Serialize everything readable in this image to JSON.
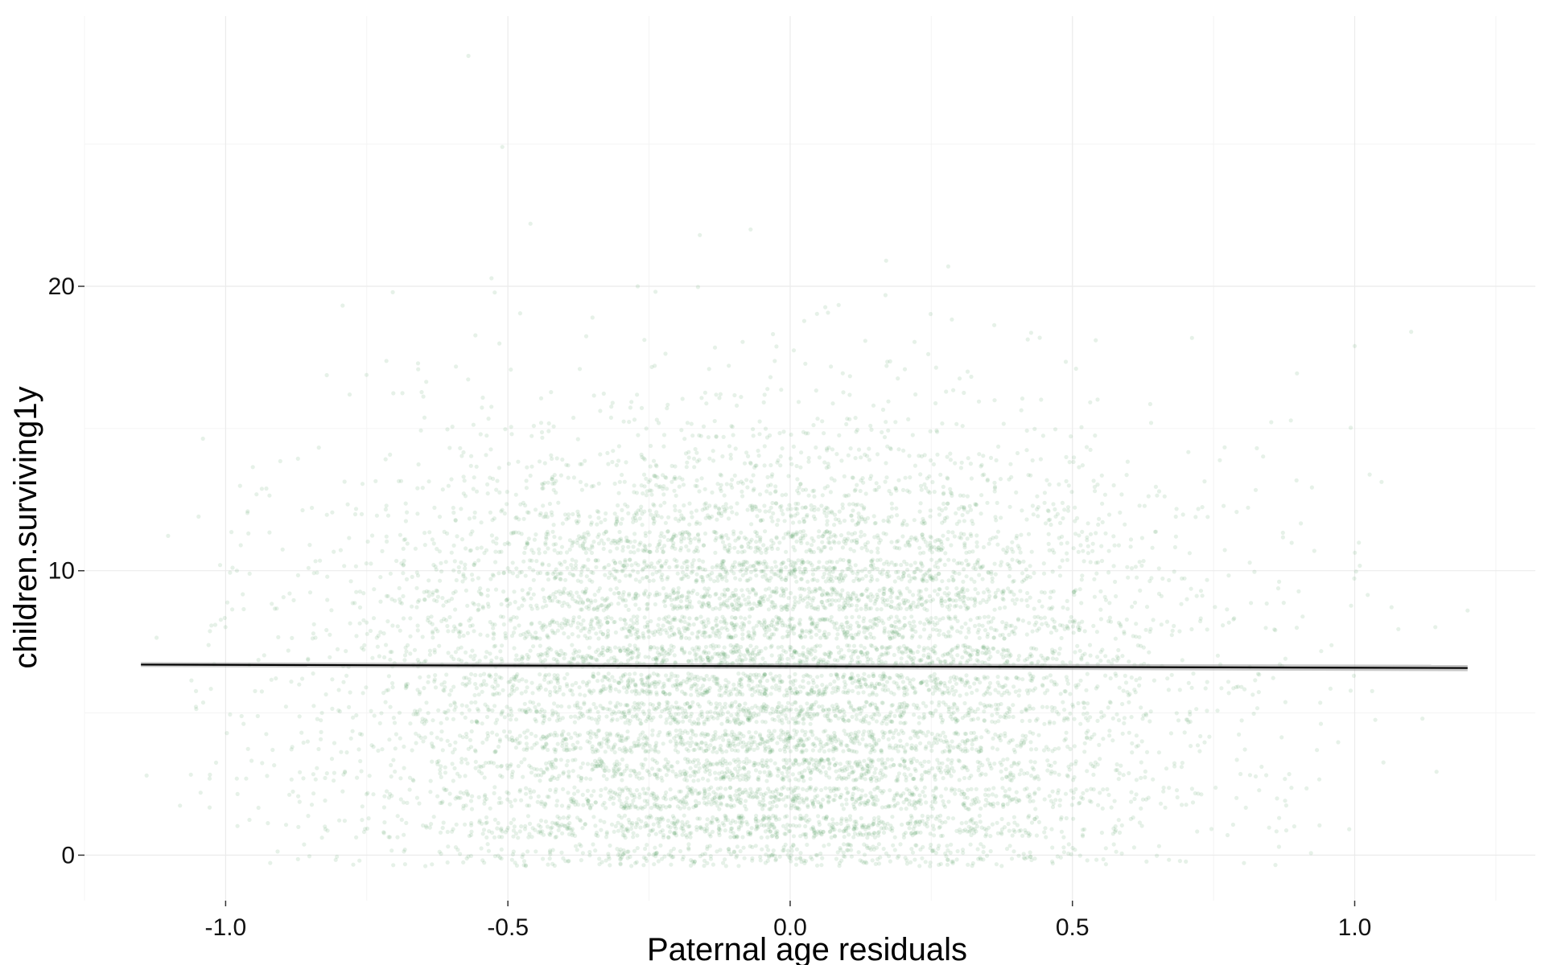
{
  "chart_data": {
    "type": "scatter",
    "title": "",
    "xlabel": "Paternal age residuals",
    "ylabel": "children.surviving1y",
    "xlim": [
      -1.25,
      1.32
    ],
    "ylim": [
      -1.6,
      29.5
    ],
    "x_ticks": [
      -1.0,
      -0.5,
      0.0,
      0.5,
      1.0
    ],
    "x_tick_labels": [
      "-1.0",
      "-0.5",
      "0.0",
      "0.5",
      "1.0"
    ],
    "y_ticks": [
      0,
      10,
      20
    ],
    "y_tick_labels": [
      "0",
      "10",
      "20"
    ],
    "grid": true,
    "legend": "none",
    "point_color": "#2e8b3e",
    "point_opacity": 0.12,
    "fit_line_color": "#000000",
    "fit_band_color": "#999999",
    "series": [
      {
        "kind": "jittered-points",
        "distribution": {
          "x_center": -0.05,
          "x_sd": 0.36,
          "x_range": [
            -1.15,
            1.2
          ],
          "y_counts": [
            0,
            1,
            2,
            3,
            4,
            5,
            6,
            7,
            8,
            9,
            10,
            11,
            12,
            13,
            14,
            15,
            16,
            17,
            18,
            19,
            20
          ],
          "relative_density": [
            0.55,
            0.95,
            1.0,
            1.0,
            1.05,
            1.05,
            1.1,
            1.1,
            1.05,
            1.0,
            0.9,
            0.75,
            0.55,
            0.38,
            0.24,
            0.14,
            0.08,
            0.045,
            0.025,
            0.015,
            0.008
          ]
        },
        "outliers": [
          [
            -0.57,
            28.1
          ],
          [
            -0.51,
            24.9
          ],
          [
            -0.46,
            22.2
          ],
          [
            -0.16,
            21.8
          ],
          [
            -0.07,
            22.0
          ],
          [
            0.17,
            20.9
          ],
          [
            0.28,
            20.7
          ],
          [
            -0.27,
            20.0
          ],
          [
            1.0,
            17.9
          ],
          [
            1.1,
            18.4
          ],
          [
            -1.14,
            2.8
          ],
          [
            1.12,
            4.8
          ],
          [
            1.2,
            8.6
          ],
          [
            -0.98,
            10.0
          ]
        ]
      },
      {
        "kind": "fit-line",
        "x": [
          -1.15,
          1.2
        ],
        "y": [
          6.7,
          6.58
        ]
      }
    ]
  }
}
